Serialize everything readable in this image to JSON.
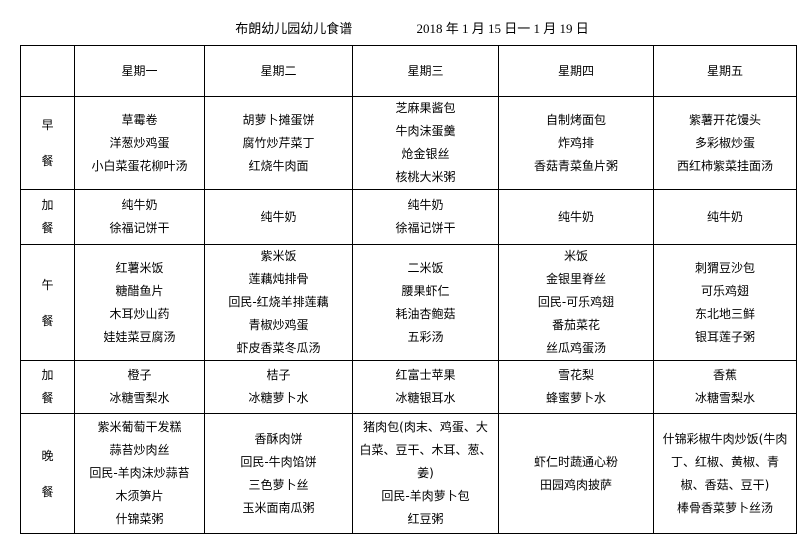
{
  "title": {
    "school": "布朗幼儿园幼儿食谱",
    "dates": "2018 年  1  月 15 日一  1 月  19 日"
  },
  "days": [
    "星期一",
    "星期二",
    "星期三",
    "星期四",
    "星期五"
  ],
  "rows": [
    {
      "meal": [
        "早",
        "餐"
      ],
      "cells": [
        [
          "草霉卷",
          "洋葱炒鸡蛋",
          "小白菜蛋花柳叶汤"
        ],
        [
          "胡萝卜摊蛋饼",
          "腐竹炒芹菜丁",
          "红烧牛肉面"
        ],
        [
          "芝麻果酱包",
          "牛肉沫蛋羹",
          "炝金银丝",
          "核桃大米粥"
        ],
        [
          "自制烤面包",
          "炸鸡排",
          "香菇青菜鱼片粥"
        ],
        [
          "紫薯开花馒头",
          "多彩椒炒蛋",
          "西红柿紫菜挂面汤"
        ]
      ]
    },
    {
      "meal": [
        "加",
        "餐"
      ],
      "cells": [
        [
          "纯牛奶",
          "徐福记饼干"
        ],
        [
          "纯牛奶"
        ],
        [
          "纯牛奶",
          "徐福记饼干"
        ],
        [
          "纯牛奶"
        ],
        [
          "纯牛奶"
        ]
      ]
    },
    {
      "meal": [
        "午",
        "餐"
      ],
      "cells": [
        [
          "红薯米饭",
          "糖醋鱼片",
          "木耳炒山药",
          "娃娃菜豆腐汤"
        ],
        [
          "紫米饭",
          "莲藕炖排骨",
          "回民-红烧羊排莲藕",
          "青椒炒鸡蛋",
          "虾皮香菜冬瓜汤"
        ],
        [
          "二米饭",
          "腰果虾仁",
          "耗油杏鲍菇",
          "五彩汤"
        ],
        [
          "米饭",
          "金银里脊丝",
          "回民-可乐鸡翅",
          "番茄菜花",
          "丝瓜鸡蛋汤"
        ],
        [
          "刺猬豆沙包",
          "可乐鸡翅",
          "东北地三鲜",
          "银耳莲子粥"
        ]
      ]
    },
    {
      "meal": [
        "加",
        "餐"
      ],
      "cells": [
        [
          "橙子",
          "冰糖雪梨水"
        ],
        [
          "桔子",
          "冰糖萝卜水"
        ],
        [
          "红富士苹果",
          "冰糖银耳水"
        ],
        [
          "雪花梨",
          "蜂蜜萝卜水"
        ],
        [
          "香蕉",
          "冰糖雪梨水"
        ]
      ]
    },
    {
      "meal": [
        "晚",
        "餐"
      ],
      "cells": [
        [
          "紫米葡萄干发糕",
          "蒜苔炒肉丝",
          "回民-羊肉沫炒蒜苔",
          "木须笋片",
          "什锦菜粥"
        ],
        [
          "香酥肉饼",
          "回民-牛肉馅饼",
          "三色萝卜丝",
          "玉米面南瓜粥"
        ],
        [
          "猪肉包(肉末、鸡蛋、大",
          "白菜、豆干、木耳、葱、",
          "姜)",
          "回民-羊肉萝卜包",
          "红豆粥"
        ],
        [
          "虾仁时蔬通心粉",
          "田园鸡肉披萨"
        ],
        [
          "什锦彩椒牛肉炒饭(牛肉",
          "丁、红椒、黄椒、青",
          "椒、香菇、豆干)",
          "棒骨香菜萝卜丝汤"
        ]
      ]
    }
  ]
}
